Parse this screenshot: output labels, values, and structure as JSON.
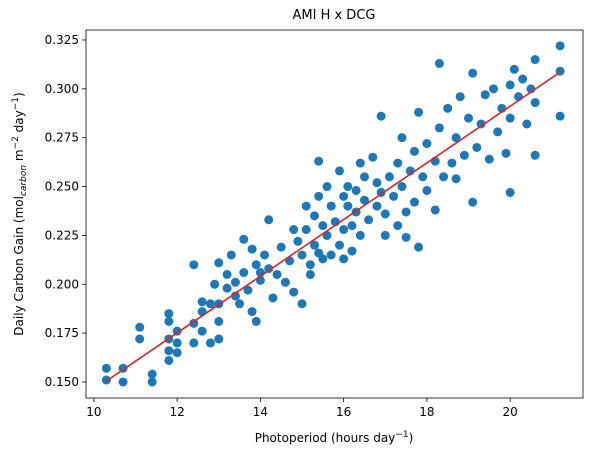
{
  "chart_data": {
    "type": "scatter",
    "title": "AMI H x DCG",
    "xlabel": [
      "Photoperiod (hours day",
      "−1",
      ")"
    ],
    "ylabel": [
      "Daily Carbon Gain (mol",
      "carbon",
      " m",
      "−2",
      " day",
      "−1",
      ")"
    ],
    "xlim": [
      9.81,
      21.75
    ],
    "ylim": [
      0.1418,
      0.3301
    ],
    "xticks": [
      10,
      12,
      14,
      16,
      18,
      20
    ],
    "yticks": [
      {
        "value": 0.15,
        "label": "0.150"
      },
      0.175,
      {
        "value": 0.2,
        "label": "0.200"
      },
      0.225,
      {
        "value": 0.25,
        "label": "0.250"
      },
      0.275,
      {
        "value": 0.3,
        "label": "0.300"
      },
      0.325
    ],
    "series": [
      {
        "color": "#1f77b4",
        "x": [
          10.3,
          10.3,
          10.7,
          10.7,
          11.1,
          11.1,
          11.4,
          11.4,
          11.8,
          11.8,
          11.8,
          11.8,
          11.8,
          12.0,
          12.0,
          12.0,
          12.4,
          12.4,
          12.4,
          12.6,
          12.6,
          12.6,
          12.8,
          12.8,
          12.9,
          13.0,
          13.0,
          13.0,
          13.0,
          13.2,
          13.2,
          13.3,
          13.4,
          13.4,
          13.5,
          13.6,
          13.6,
          13.7,
          13.8,
          13.8,
          13.9,
          13.9,
          14.0,
          14.0,
          14.1,
          14.2,
          14.2,
          14.3,
          14.4,
          14.5,
          14.6,
          14.7,
          14.8,
          14.8,
          14.9,
          15.0,
          15.0,
          15.1,
          15.1,
          15.2,
          15.2,
          15.3,
          15.3,
          15.4,
          15.4,
          15.4,
          15.5,
          15.5,
          15.6,
          15.6,
          15.7,
          15.7,
          15.8,
          15.9,
          15.9,
          16.0,
          16.0,
          16.0,
          16.1,
          16.1,
          16.2,
          16.2,
          16.3,
          16.3,
          16.4,
          16.4,
          16.5,
          16.5,
          16.6,
          16.7,
          16.8,
          16.8,
          16.9,
          16.9,
          17.0,
          17.0,
          17.1,
          17.2,
          17.3,
          17.3,
          17.4,
          17.4,
          17.5,
          17.5,
          17.6,
          17.7,
          17.7,
          17.8,
          17.8,
          17.9,
          18.0,
          18.0,
          18.2,
          18.2,
          18.3,
          18.3,
          18.4,
          18.5,
          18.6,
          18.7,
          18.7,
          18.8,
          18.9,
          19.0,
          19.1,
          19.1,
          19.2,
          19.3,
          19.4,
          19.5,
          19.6,
          19.7,
          19.8,
          19.9,
          20.0,
          20.0,
          20.0,
          20.1,
          20.2,
          20.3,
          20.4,
          20.5,
          20.6,
          20.6,
          20.6,
          21.2,
          21.2,
          21.2
        ],
        "values": [
          0.157,
          0.151,
          0.157,
          0.15,
          0.178,
          0.172,
          0.154,
          0.15,
          0.185,
          0.181,
          0.172,
          0.166,
          0.161,
          0.176,
          0.17,
          0.165,
          0.21,
          0.18,
          0.17,
          0.191,
          0.186,
          0.176,
          0.19,
          0.17,
          0.2,
          0.211,
          0.19,
          0.181,
          0.172,
          0.205,
          0.198,
          0.215,
          0.201,
          0.194,
          0.19,
          0.223,
          0.206,
          0.197,
          0.218,
          0.186,
          0.181,
          0.21,
          0.206,
          0.202,
          0.215,
          0.233,
          0.208,
          0.193,
          0.205,
          0.219,
          0.201,
          0.212,
          0.228,
          0.196,
          0.222,
          0.215,
          0.19,
          0.24,
          0.228,
          0.21,
          0.205,
          0.235,
          0.22,
          0.263,
          0.245,
          0.216,
          0.23,
          0.213,
          0.25,
          0.225,
          0.24,
          0.215,
          0.232,
          0.258,
          0.22,
          0.245,
          0.228,
          0.213,
          0.25,
          0.24,
          0.23,
          0.217,
          0.248,
          0.237,
          0.262,
          0.225,
          0.255,
          0.243,
          0.233,
          0.265,
          0.252,
          0.24,
          0.286,
          0.247,
          0.236,
          0.225,
          0.255,
          0.245,
          0.23,
          0.262,
          0.275,
          0.25,
          0.237,
          0.224,
          0.258,
          0.268,
          0.242,
          0.288,
          0.219,
          0.255,
          0.272,
          0.248,
          0.263,
          0.238,
          0.313,
          0.28,
          0.255,
          0.29,
          0.262,
          0.275,
          0.254,
          0.296,
          0.266,
          0.285,
          0.308,
          0.242,
          0.27,
          0.282,
          0.297,
          0.264,
          0.3,
          0.278,
          0.29,
          0.267,
          0.302,
          0.285,
          0.247,
          0.31,
          0.296,
          0.305,
          0.282,
          0.3,
          0.315,
          0.293,
          0.266,
          0.322,
          0.309,
          0.286
        ]
      }
    ],
    "line": {
      "color": "#d62728",
      "x": [
        10.3,
        21.2
      ],
      "values": [
        0.1505,
        0.3085
      ]
    }
  }
}
